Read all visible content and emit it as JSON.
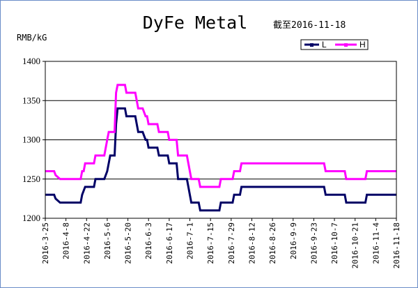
{
  "chart_data": {
    "type": "line",
    "title": "DyFe Metal",
    "subtitle": "截至2016-11-18",
    "ylabel": "RMB/kG",
    "ylim": [
      1200,
      1400
    ],
    "yticks": [
      1200,
      1250,
      1300,
      1350,
      1400
    ],
    "xlim": [
      "2016-03-25",
      "2016-11-18"
    ],
    "xticks": [
      "2016-3-25",
      "2016-4-8",
      "2016-4-22",
      "2016-5-6",
      "2016-5-20",
      "2016-6-3",
      "2016-6-17",
      "2016-7-1",
      "2016-7-15",
      "2016-7-29",
      "2016-8-12",
      "2016-8-26",
      "2016-9-9",
      "2016-9-23",
      "2016-10-7",
      "2016-10-21",
      "2016-11-4",
      "2016-11-18"
    ],
    "grid": "horizontal",
    "legend": "top-right",
    "series": [
      {
        "name": "L",
        "color": "#000066",
        "points": [
          [
            "2016-03-25",
            1230
          ],
          [
            "2016-03-31",
            1230
          ],
          [
            "2016-04-01",
            1225
          ],
          [
            "2016-04-04",
            1220
          ],
          [
            "2016-04-18",
            1220
          ],
          [
            "2016-04-19",
            1230
          ],
          [
            "2016-04-21",
            1240
          ],
          [
            "2016-04-27",
            1240
          ],
          [
            "2016-04-28",
            1250
          ],
          [
            "2016-05-04",
            1250
          ],
          [
            "2016-05-06",
            1260
          ],
          [
            "2016-05-08",
            1280
          ],
          [
            "2016-05-11",
            1280
          ],
          [
            "2016-05-12",
            1320
          ],
          [
            "2016-05-13",
            1340
          ],
          [
            "2016-05-18",
            1340
          ],
          [
            "2016-05-19",
            1330
          ],
          [
            "2016-05-25",
            1330
          ],
          [
            "2016-05-27",
            1310
          ],
          [
            "2016-05-30",
            1310
          ],
          [
            "2016-06-01",
            1300
          ],
          [
            "2016-06-02",
            1300
          ],
          [
            "2016-06-03",
            1290
          ],
          [
            "2016-06-09",
            1290
          ],
          [
            "2016-06-10",
            1280
          ],
          [
            "2016-06-16",
            1280
          ],
          [
            "2016-06-17",
            1270
          ],
          [
            "2016-06-22",
            1270
          ],
          [
            "2016-06-23",
            1250
          ],
          [
            "2016-06-29",
            1250
          ],
          [
            "2016-06-30",
            1240
          ],
          [
            "2016-07-01",
            1230
          ],
          [
            "2016-07-02",
            1220
          ],
          [
            "2016-07-07",
            1220
          ],
          [
            "2016-07-08",
            1210
          ],
          [
            "2016-07-21",
            1210
          ],
          [
            "2016-07-22",
            1220
          ],
          [
            "2016-07-30",
            1220
          ],
          [
            "2016-07-31",
            1230
          ],
          [
            "2016-08-04",
            1230
          ],
          [
            "2016-08-05",
            1240
          ],
          [
            "2016-09-30",
            1240
          ],
          [
            "2016-10-01",
            1230
          ],
          [
            "2016-10-14",
            1230
          ],
          [
            "2016-10-15",
            1220
          ],
          [
            "2016-10-28",
            1220
          ],
          [
            "2016-10-29",
            1230
          ],
          [
            "2016-11-18",
            1230
          ]
        ]
      },
      {
        "name": "H",
        "color": "#ff00ff",
        "points": [
          [
            "2016-03-25",
            1260
          ],
          [
            "2016-03-31",
            1260
          ],
          [
            "2016-04-01",
            1255
          ],
          [
            "2016-04-04",
            1250
          ],
          [
            "2016-04-18",
            1250
          ],
          [
            "2016-04-19",
            1260
          ],
          [
            "2016-04-20",
            1260
          ],
          [
            "2016-04-21",
            1270
          ],
          [
            "2016-04-27",
            1270
          ],
          [
            "2016-04-28",
            1280
          ],
          [
            "2016-05-04",
            1280
          ],
          [
            "2016-05-06",
            1300
          ],
          [
            "2016-05-07",
            1310
          ],
          [
            "2016-05-11",
            1310
          ],
          [
            "2016-05-12",
            1360
          ],
          [
            "2016-05-13",
            1370
          ],
          [
            "2016-05-18",
            1370
          ],
          [
            "2016-05-19",
            1360
          ],
          [
            "2016-05-25",
            1360
          ],
          [
            "2016-05-27",
            1340
          ],
          [
            "2016-05-30",
            1340
          ],
          [
            "2016-06-01",
            1330
          ],
          [
            "2016-06-02",
            1330
          ],
          [
            "2016-06-03",
            1320
          ],
          [
            "2016-06-09",
            1320
          ],
          [
            "2016-06-10",
            1310
          ],
          [
            "2016-06-16",
            1310
          ],
          [
            "2016-06-17",
            1300
          ],
          [
            "2016-06-22",
            1300
          ],
          [
            "2016-06-23",
            1280
          ],
          [
            "2016-06-29",
            1280
          ],
          [
            "2016-06-30",
            1270
          ],
          [
            "2016-07-01",
            1260
          ],
          [
            "2016-07-02",
            1250
          ],
          [
            "2016-07-07",
            1250
          ],
          [
            "2016-07-08",
            1240
          ],
          [
            "2016-07-21",
            1240
          ],
          [
            "2016-07-22",
            1250
          ],
          [
            "2016-07-30",
            1250
          ],
          [
            "2016-07-31",
            1260
          ],
          [
            "2016-08-04",
            1260
          ],
          [
            "2016-08-05",
            1270
          ],
          [
            "2016-09-30",
            1270
          ],
          [
            "2016-10-01",
            1260
          ],
          [
            "2016-10-14",
            1260
          ],
          [
            "2016-10-15",
            1250
          ],
          [
            "2016-10-28",
            1250
          ],
          [
            "2016-10-29",
            1260
          ],
          [
            "2016-11-18",
            1260
          ]
        ]
      }
    ]
  }
}
